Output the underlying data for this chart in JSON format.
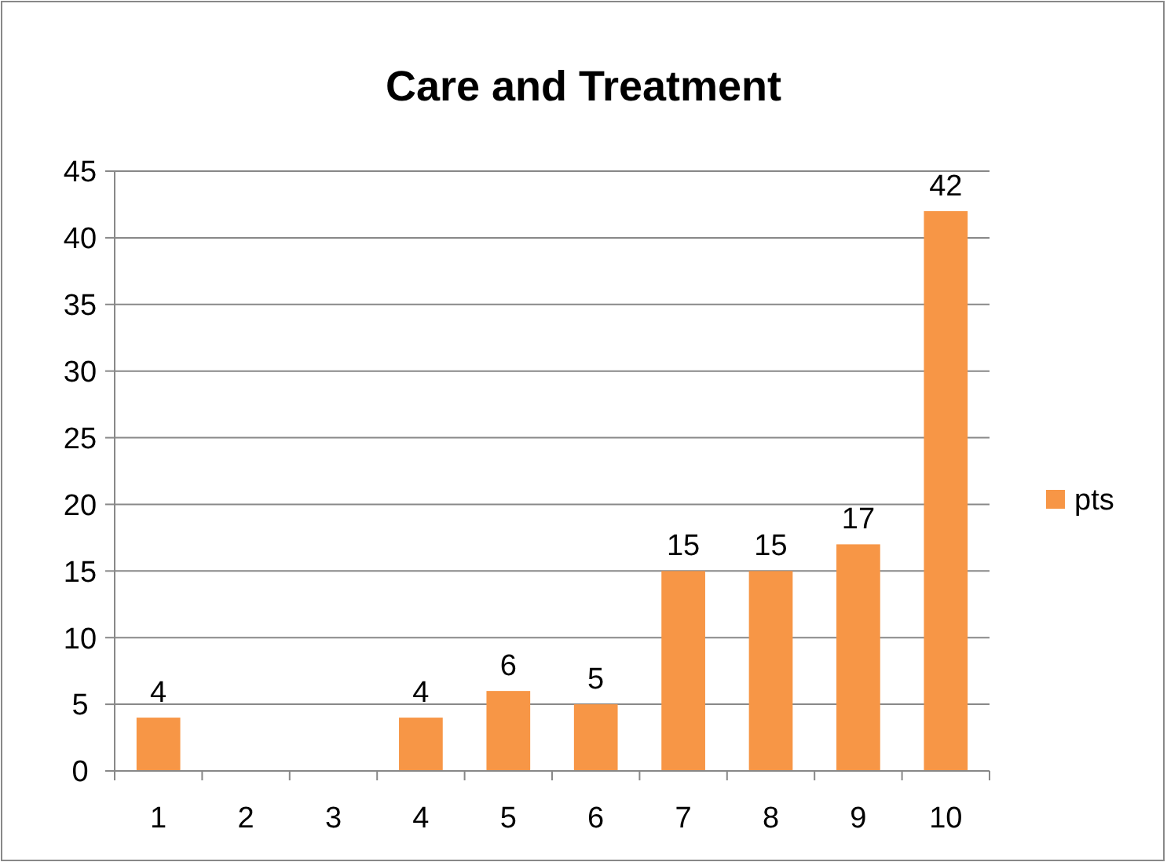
{
  "chart_data": {
    "type": "bar",
    "title": "Care and Treatment",
    "categories": [
      "1",
      "2",
      "3",
      "4",
      "5",
      "6",
      "7",
      "8",
      "9",
      "10"
    ],
    "series": [
      {
        "name": "pts",
        "color": "#f79646",
        "values": [
          4,
          null,
          null,
          4,
          6,
          5,
          15,
          15,
          17,
          42
        ]
      }
    ],
    "ylim": [
      0,
      45
    ],
    "yticks": [
      0,
      5,
      10,
      15,
      20,
      25,
      30,
      35,
      40,
      45
    ],
    "grid": "y",
    "legend": "right",
    "data_labels": true
  }
}
